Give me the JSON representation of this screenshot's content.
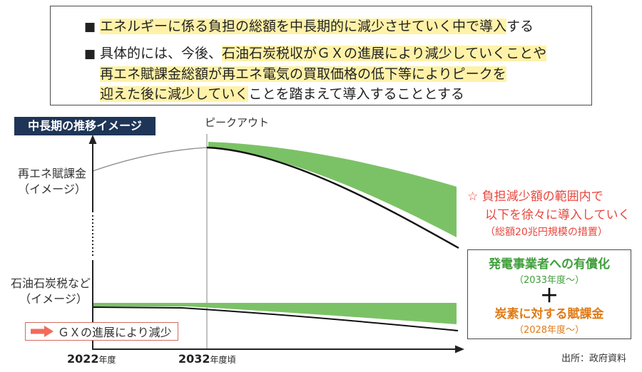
{
  "summary": {
    "item_1": {
      "bullet": "■",
      "highlight": "エネルギーに係る負担の総額を中長期的に減少させていく中で導入",
      "tail": "する"
    },
    "item_2": {
      "bullet": "■",
      "lead": "具体的には、今後、",
      "line_1_highlight": "石油石炭税収がＧＸの進展により減少していくことや",
      "line_2_highlight": "再エネ賦課金総額が再エネ電気の買取価格の低下等によりピークを",
      "line_3_highlight": "迎えた後に減少していく",
      "line_3_tail": "ことを踏まえて導入することとする"
    }
  },
  "diagram": {
    "title": "中長期の推移イメージ",
    "peak_label": "ピークアウト",
    "series_labels": {
      "renewable_levy": {
        "name": "再エネ賦課金",
        "note": "（イメージ）"
      },
      "oil_coal_tax": {
        "name": "石油石炭税など",
        "note": "（イメージ）"
      }
    },
    "decline_note": {
      "icon": "arrow-right-icon",
      "text": "ＧＸの進展により減少"
    },
    "x_axis": [
      {
        "year": "2022",
        "suffix": "年度"
      },
      {
        "year": "2032",
        "suffix": "年度頃"
      }
    ],
    "annotation": {
      "star": "☆",
      "line_1": "負担減少額の範囲内で",
      "line_2": "以下を徐々に導入していく",
      "line_3": "（総額20兆円規模の措置）"
    },
    "measures": {
      "item_1": {
        "label": "発電事業者への有償化",
        "start": "（2033年度～）"
      },
      "plus": "＋",
      "item_2": {
        "label": "炭素に対する賦課金",
        "start": "（2028年度～）"
      }
    }
  },
  "source": "出所：政府資料",
  "colors": {
    "navy": "#1f3557",
    "green-fill": "#7bc266",
    "green-text": "#3f9e3a",
    "orange-text": "#e07a16",
    "red-text": "#e8463c",
    "highlight": "#fff2a8"
  }
}
